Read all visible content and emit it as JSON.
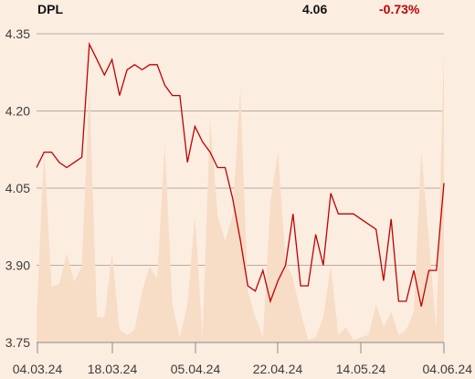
{
  "header": {
    "symbol": "DPL",
    "last": "4.06",
    "change": "-0.73%"
  },
  "colors": {
    "background": "#fcede1",
    "price_line": "#c00000",
    "volume_fill": "#f7dcc6",
    "change_negative": "#c00000",
    "grid": "#b9aca2"
  },
  "chart_data": {
    "type": "line",
    "title": "",
    "xlabel": "",
    "ylabel": "",
    "ylim": [
      3.75,
      4.35
    ],
    "yticks": [
      "4.35",
      "4.20",
      "4.05",
      "3.90",
      "3.75"
    ],
    "xticks": [
      "04.03.24",
      "18.03.24",
      "05.04.24",
      "22.04.24",
      "14.05.24",
      "04.06.24"
    ],
    "grid": true,
    "series": [
      {
        "values": [
          4.09,
          4.12,
          4.12,
          4.1,
          4.09,
          4.1,
          4.11,
          4.33,
          4.3,
          4.27,
          4.3,
          4.23,
          4.28,
          4.29,
          4.28,
          4.29,
          4.29,
          4.25,
          4.23,
          4.23,
          4.1,
          4.17,
          4.14,
          4.12,
          4.09,
          4.09,
          4.03,
          3.95,
          3.86,
          3.85,
          3.89,
          3.83,
          3.87,
          3.9,
          4.0,
          3.86,
          3.86,
          3.96,
          3.9,
          4.04,
          4.0,
          4.0,
          4.0,
          3.99,
          3.98,
          3.97,
          3.87,
          3.99,
          3.83,
          3.83,
          3.89,
          3.82,
          3.89,
          3.89,
          4.06
        ]
      }
    ],
    "volume": [
      0.1,
      0.75,
      0.22,
      0.23,
      0.35,
      0.24,
      0.3,
      1.0,
      0.1,
      0.1,
      0.35,
      0.05,
      0.03,
      0.05,
      0.2,
      0.3,
      0.25,
      0.78,
      0.15,
      0.02,
      0.15,
      0.5,
      0.02,
      0.88,
      0.5,
      0.4,
      0.5,
      1.0,
      0.2,
      0.1,
      0.02,
      0.55,
      0.75,
      0.32,
      0.25,
      0.12,
      0.01,
      0.02,
      0.1,
      0.3,
      0.03,
      0.06,
      0.01,
      0.02,
      0.03,
      0.15,
      0.06,
      0.12,
      0.03,
      0.05,
      0.12,
      0.75,
      0.4,
      0.05,
      1.15
    ]
  }
}
